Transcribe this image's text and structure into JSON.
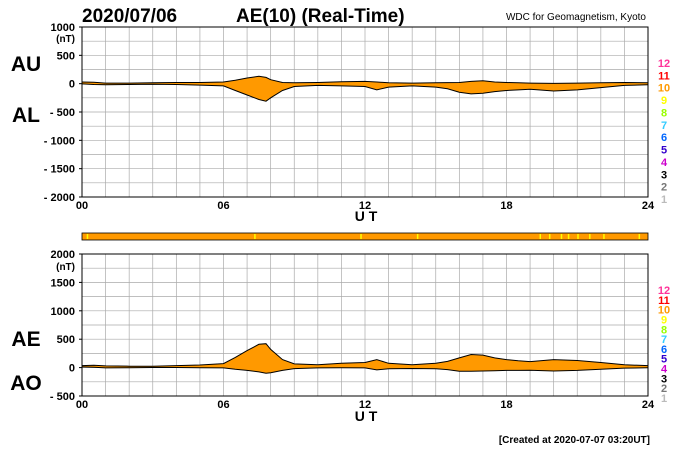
{
  "header": {
    "date": "2020/07/06",
    "title": "AE(10) (Real-Time)",
    "source": "WDC for Geomagnetism, Kyoto"
  },
  "footer": {
    "created": "[Created at 2020-07-07 03:20UT]"
  },
  "station_count_legend": [
    {
      "label": "12",
      "color": "#ff3399"
    },
    {
      "label": "11",
      "color": "#ff0000"
    },
    {
      "label": "10",
      "color": "#ff9900"
    },
    {
      "label": "9",
      "color": "#ffff00"
    },
    {
      "label": "8",
      "color": "#99ff00"
    },
    {
      "label": "7",
      "color": "#33ccff"
    },
    {
      "label": "6",
      "color": "#0066ff"
    },
    {
      "label": "5",
      "color": "#3300cc"
    },
    {
      "label": "4",
      "color": "#cc00cc"
    },
    {
      "label": "3",
      "color": "#000000"
    },
    {
      "label": "2",
      "color": "#777777"
    },
    {
      "label": "1",
      "color": "#bbbbbb"
    }
  ],
  "colors": {
    "fill": "#ff9900",
    "grid": "#aaaaaa",
    "line": "#000000",
    "station_bar_highlight": "#ffff00"
  },
  "station_bar": {
    "dominant_count": 10,
    "count_9_hours": [
      0.2,
      7.3,
      11.8,
      14.2,
      19.4,
      19.8,
      20.3,
      20.6,
      21.0,
      21.5,
      22.1,
      23.6
    ]
  },
  "chart_data": [
    {
      "type": "area",
      "series": [
        {
          "name": "AU",
          "x": [
            0,
            0.5,
            1,
            2,
            3,
            4,
            5,
            6,
            6.5,
            7,
            7.5,
            7.8,
            8,
            8.5,
            9,
            10,
            11,
            12,
            12.5,
            13,
            14,
            15,
            16,
            16.5,
            17,
            17.5,
            18,
            18.5,
            19,
            20,
            21,
            22,
            23,
            24
          ],
          "values": [
            30,
            25,
            10,
            10,
            15,
            20,
            20,
            30,
            60,
            100,
            130,
            110,
            70,
            20,
            15,
            20,
            35,
            40,
            30,
            15,
            10,
            15,
            20,
            40,
            50,
            30,
            20,
            15,
            10,
            5,
            10,
            15,
            20,
            15
          ]
        },
        {
          "name": "AL",
          "x": [
            0,
            0.5,
            1,
            2,
            3,
            4,
            5,
            6,
            6.5,
            7,
            7.5,
            7.8,
            8,
            8.5,
            9,
            10,
            11,
            12,
            12.5,
            13,
            14,
            15,
            15.5,
            16,
            16.5,
            17,
            17.5,
            18,
            18.5,
            19,
            20,
            21,
            22,
            23,
            24
          ],
          "values": [
            -5,
            -15,
            -20,
            -15,
            -10,
            -15,
            -25,
            -40,
            -120,
            -200,
            -280,
            -310,
            -250,
            -120,
            -50,
            -30,
            -40,
            -50,
            -110,
            -60,
            -40,
            -60,
            -90,
            -150,
            -180,
            -170,
            -140,
            -120,
            -110,
            -100,
            -130,
            -110,
            -70,
            -30,
            -20
          ]
        }
      ],
      "xlabel": "U T",
      "ylabel": "(nT)",
      "series_labels": [
        "AU",
        "AL"
      ],
      "xlim": [
        0,
        24
      ],
      "ylim": [
        -2000,
        1000
      ],
      "yticks": [
        1000,
        500,
        0,
        -500,
        -1000,
        -1500,
        -2000
      ],
      "ytick_labels": [
        "1000",
        "500",
        "0",
        "- 500",
        "- 1000",
        "- 1500",
        "- 2000"
      ],
      "xticks": [
        0,
        6,
        12,
        18,
        24
      ],
      "xtick_labels": [
        "00",
        "06",
        "12",
        "18",
        "24"
      ],
      "grid": true
    },
    {
      "type": "area",
      "series": [
        {
          "name": "AE",
          "x": [
            0,
            0.5,
            1,
            2,
            3,
            4,
            5,
            6,
            6.5,
            7,
            7.5,
            7.8,
            8,
            8.5,
            9,
            10,
            11,
            12,
            12.5,
            13,
            14,
            15,
            15.5,
            16,
            16.5,
            17,
            17.5,
            18,
            18.5,
            19,
            20,
            21,
            22,
            23,
            24
          ],
          "values": [
            35,
            40,
            30,
            25,
            25,
            35,
            45,
            70,
            180,
            300,
            410,
            420,
            320,
            140,
            65,
            50,
            75,
            90,
            140,
            75,
            50,
            75,
            110,
            170,
            230,
            220,
            170,
            140,
            120,
            105,
            140,
            125,
            90,
            50,
            35
          ]
        },
        {
          "name": "AO",
          "x": [
            0,
            0.5,
            1,
            2,
            3,
            4,
            5,
            6,
            6.5,
            7,
            7.5,
            7.8,
            8,
            8.5,
            9,
            10,
            11,
            12,
            12.5,
            13,
            14,
            15,
            15.5,
            16,
            16.5,
            17,
            17.5,
            18,
            18.5,
            19,
            20,
            21,
            22,
            23,
            24
          ],
          "values": [
            12,
            5,
            -5,
            -3,
            2,
            2,
            -3,
            -5,
            -30,
            -50,
            -75,
            -100,
            -90,
            -50,
            -18,
            -5,
            -3,
            -5,
            -40,
            -22,
            -15,
            -22,
            -35,
            -65,
            -65,
            -60,
            -55,
            -50,
            -50,
            -48,
            -60,
            -50,
            -28,
            -8,
            -3
          ]
        }
      ],
      "xlabel": "U T",
      "ylabel": "(nT)",
      "series_labels": [
        "AE",
        "AO"
      ],
      "xlim": [
        0,
        24
      ],
      "ylim": [
        -500,
        2000
      ],
      "yticks": [
        2000,
        1500,
        1000,
        500,
        0,
        -500
      ],
      "ytick_labels": [
        "2000",
        "1500",
        "1000",
        "500",
        "0",
        "- 500"
      ],
      "xticks": [
        0,
        6,
        12,
        18,
        24
      ],
      "xtick_labels": [
        "00",
        "06",
        "12",
        "18",
        "24"
      ],
      "grid": true
    }
  ]
}
